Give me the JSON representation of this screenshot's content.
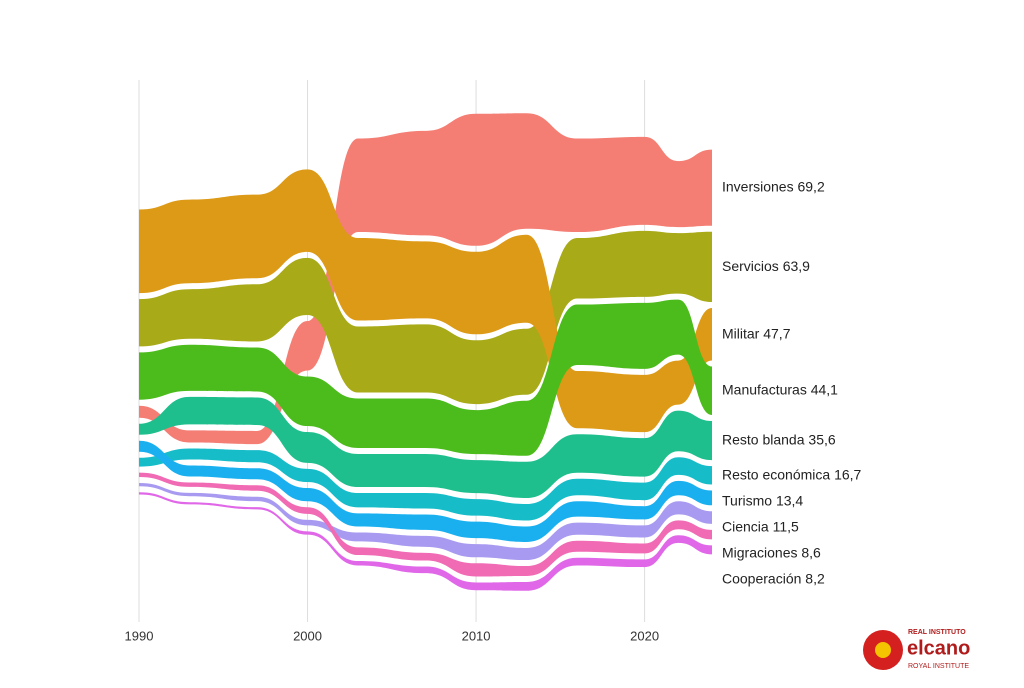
{
  "chart_data": {
    "type": "ribbon",
    "x": [
      1990,
      1993,
      1997,
      2000,
      2003,
      2007,
      2010,
      2013,
      2016,
      2020,
      2022,
      2024
    ],
    "xlim": [
      1990,
      2024
    ],
    "xticks": [
      1990,
      2000,
      2010,
      2020
    ],
    "grid": true,
    "series": [
      {
        "name": "Inversiones",
        "color": "#f47e74",
        "values": [
          11,
          11,
          12,
          45,
          85,
          95,
          120,
          105,
          85,
          80,
          60,
          69.2
        ],
        "value_labels": [
          null,
          null,
          null,
          null,
          null,
          null,
          null,
          null,
          null,
          null,
          null,
          "69,2"
        ]
      },
      {
        "name": "Servicios",
        "color": "#a8aa18",
        "values": [
          43,
          45,
          52,
          52,
          60,
          62,
          58,
          60,
          55,
          60,
          55,
          63.9
        ],
        "value_labels": [
          null,
          null,
          null,
          null,
          null,
          null,
          null,
          null,
          null,
          null,
          null,
          "63,9"
        ]
      },
      {
        "name": "Militar",
        "color": "#dd9a17",
        "values": [
          76,
          76,
          76,
          75,
          75,
          70,
          75,
          80,
          52,
          52,
          40,
          47.7
        ],
        "value_labels": [
          null,
          null,
          null,
          null,
          null,
          null,
          null,
          null,
          null,
          null,
          null,
          "47,7"
        ]
      },
      {
        "name": "Manufacturas",
        "color": "#4cbc1c",
        "values": [
          43,
          42,
          40,
          45,
          45,
          45,
          40,
          50,
          55,
          60,
          50,
          44.1
        ],
        "value_labels": [
          null,
          null,
          null,
          null,
          null,
          null,
          null,
          null,
          null,
          null,
          null,
          "44,1"
        ]
      },
      {
        "name": "Resto blanda",
        "color": "#1fbf8d",
        "values": [
          10,
          25,
          25,
          28,
          30,
          30,
          30,
          33,
          35,
          35,
          37,
          35.6
        ],
        "value_labels": [
          null,
          null,
          null,
          null,
          null,
          null,
          null,
          null,
          null,
          null,
          null,
          "35,6"
        ]
      },
      {
        "name": "Resto económica",
        "color": "#17bcc9",
        "values": [
          8,
          10,
          11,
          12,
          13,
          14,
          15,
          15,
          15,
          16,
          16,
          16.7
        ],
        "value_labels": [
          null,
          null,
          null,
          null,
          null,
          null,
          null,
          null,
          null,
          null,
          null,
          "16,7"
        ]
      },
      {
        "name": "Turismo",
        "color": "#1ab0f0",
        "values": [
          10,
          10,
          10,
          12,
          12,
          14,
          15,
          14,
          14,
          12,
          13,
          13.4
        ],
        "value_labels": [
          null,
          null,
          null,
          null,
          null,
          null,
          null,
          null,
          null,
          null,
          null,
          "13,4"
        ]
      },
      {
        "name": "Ciencia",
        "color": "#a89af0",
        "values": [
          3,
          3,
          4,
          5,
          8,
          10,
          12,
          11,
          11,
          11,
          12,
          11.5
        ],
        "value_labels": [
          null,
          null,
          null,
          null,
          null,
          null,
          null,
          null,
          null,
          null,
          null,
          "11,5"
        ]
      },
      {
        "name": "Migraciones",
        "color": "#f06ab4",
        "values": [
          4,
          4,
          5,
          6,
          7,
          7,
          12,
          9,
          10,
          9,
          8,
          8.6
        ],
        "value_labels": [
          null,
          null,
          null,
          null,
          null,
          null,
          null,
          null,
          null,
          null,
          null,
          "8,6"
        ]
      },
      {
        "name": "Cooperación",
        "color": "#e068e8",
        "values": [
          2,
          2,
          2,
          3,
          4,
          6,
          7,
          8,
          7,
          7,
          7,
          8.2
        ],
        "value_labels": [
          null,
          null,
          null,
          null,
          null,
          null,
          null,
          null,
          null,
          null,
          null,
          "8,2"
        ]
      }
    ]
  },
  "logo": {
    "top": "REAL INSTITUTO",
    "name": "elcano",
    "bottom": "ROYAL INSTITUTE"
  }
}
